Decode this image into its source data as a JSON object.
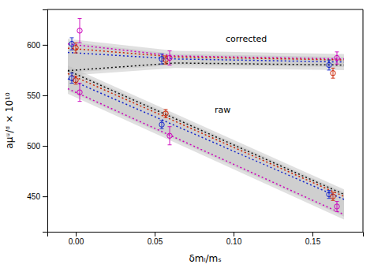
{
  "chart_data": {
    "type": "scatter",
    "xlabel": "δmₗ/mₛ",
    "ylabel": "aμᵘ/ᵈ × 10¹⁰",
    "xlim": [
      -0.018,
      0.182
    ],
    "ylim": [
      415,
      635
    ],
    "xticks": [
      {
        "value": 0.0,
        "label": "0.00"
      },
      0.05,
      {
        "value": 0.1,
        "label": "0.10"
      },
      0.15
    ],
    "yticks": [
      450,
      500,
      550,
      600
    ],
    "grid": false,
    "series": [
      {
        "type": "band",
        "color": "#bbbbbb",
        "x": [
          -0.005,
          0,
          0.063,
          0.17
        ],
        "lower": [
          569.444,
          570,
          577,
          575
        ],
        "upper": [
          605.873,
          605,
          594,
          591
        ]
      },
      {
        "type": "band",
        "color": "#bbbbbb",
        "x": [
          -0.005,
          0,
          0.063,
          0.17
        ],
        "lower": [
          572.444,
          573,
          580,
          578
        ],
        "upper": [
          602.873,
          602,
          591,
          588
        ]
      },
      {
        "type": "band",
        "color": "#bbbbbb",
        "x": [
          -0.005,
          0.17
        ],
        "lower": [
          551.559,
          427
        ],
        "upper": [
          579.5,
          457
        ]
      },
      {
        "type": "band",
        "color": "#bbbbbb",
        "x": [
          -0.005,
          0.17
        ],
        "lower": [
          554.559,
          430
        ],
        "upper": [
          576.5,
          454
        ]
      },
      {
        "type": "line",
        "line_style": "dotted",
        "color": "#cc00bb",
        "x": [
          -0.005,
          0,
          0.063,
          0.17
        ],
        "values": [
          600.873,
          600,
          589,
          586
        ]
      },
      {
        "type": "line",
        "line_style": "dotted",
        "color": "#cc2200",
        "x": [
          -0.005,
          0,
          0.063,
          0.17
        ],
        "values": [
          596.635,
          596,
          588,
          585
        ]
      },
      {
        "type": "line",
        "line_style": "dotted",
        "color": "#1122cc",
        "x": [
          -0.005,
          0,
          0.063,
          0.17
        ],
        "values": [
          592.476,
          592,
          586,
          583
        ]
      },
      {
        "type": "line",
        "line_style": "dotted",
        "color": "#111111",
        "x": [
          -0.005,
          0,
          0.063,
          0.17
        ],
        "values": [
          574.444,
          575,
          582,
          580
        ]
      },
      {
        "type": "line",
        "line_style": "dotted",
        "color": "#111111",
        "x": [
          -0.005,
          0.17
        ],
        "values": [
          574.5,
          452
        ]
      },
      {
        "type": "line",
        "line_style": "dotted",
        "color": "#cc2200",
        "x": [
          -0.005,
          0.17
        ],
        "values": [
          571.471,
          450
        ]
      },
      {
        "type": "line",
        "line_style": "dotted",
        "color": "#1122cc",
        "x": [
          -0.005,
          0.17
        ],
        "values": [
          566.412,
          447
        ]
      },
      {
        "type": "line",
        "line_style": "dotted",
        "color": "#cc00bb",
        "x": [
          -0.005,
          0.17
        ],
        "values": [
          556.559,
          432
        ]
      },
      {
        "type": "scatter",
        "marker": "open-circle",
        "color": "#1122cc",
        "x": [
          0.0,
          0.057,
          0.163
        ],
        "values": [
          601,
          586,
          580
        ],
        "errors": [
          6,
          5,
          5
        ]
      },
      {
        "type": "scatter",
        "marker": "open-circle",
        "color": "#cc2200",
        "x": [
          0.0,
          0.057,
          0.163
        ],
        "values": [
          597,
          585,
          572
        ],
        "errors": [
          5,
          4,
          5
        ]
      },
      {
        "type": "scatter",
        "marker": "open-circle",
        "color": "#cc00bb",
        "x": [
          0.0,
          0.057,
          0.163
        ],
        "values": [
          614,
          587,
          587
        ],
        "errors": [
          12,
          7,
          6
        ]
      },
      {
        "type": "scatter",
        "marker": "open-circle",
        "color": "#1122cc",
        "x": [
          0.0,
          0.057,
          0.163
        ],
        "values": [
          567,
          521,
          452
        ],
        "errors": [
          5,
          4,
          4
        ]
      },
      {
        "type": "scatter",
        "marker": "open-circle",
        "color": "#cc2200",
        "x": [
          0.0,
          0.057,
          0.163
        ],
        "values": [
          565,
          532,
          450
        ],
        "errors": [
          4,
          4,
          4
        ]
      },
      {
        "type": "scatter",
        "marker": "open-circle",
        "color": "#cc00bb",
        "x": [
          0.0,
          0.057,
          0.163
        ],
        "values": [
          553,
          510,
          440
        ],
        "errors": [
          9,
          9,
          5
        ]
      }
    ],
    "annotations": [
      {
        "text": "corrected",
        "x": 0.095,
        "y": 603
      },
      {
        "text": "raw",
        "x": 0.088,
        "y": 533
      }
    ]
  }
}
